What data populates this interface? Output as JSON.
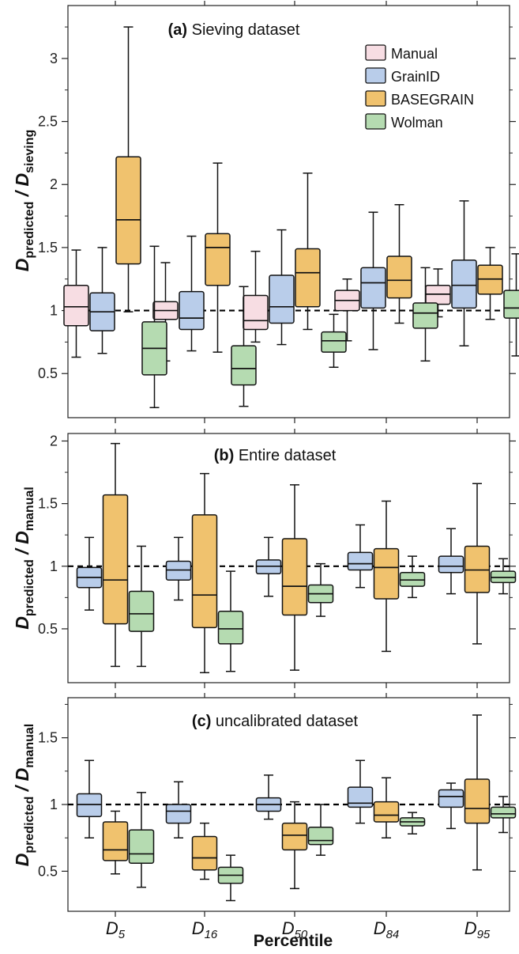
{
  "chart_data": {
    "type": "box",
    "xlabel": "Percentile",
    "categories": [
      {
        "main": "D",
        "sub": "5"
      },
      {
        "main": "D",
        "sub": "16"
      },
      {
        "main": "D",
        "sub": "50"
      },
      {
        "main": "D",
        "sub": "84"
      },
      {
        "main": "D",
        "sub": "95"
      }
    ],
    "legend": [
      {
        "name": "Manual",
        "color": "#f7dde3"
      },
      {
        "name": "GrainID",
        "color": "#b9cdea"
      },
      {
        "name": "BASEGRAIN",
        "color": "#f0c26e"
      },
      {
        "name": "Wolman",
        "color": "#b5dbb1"
      }
    ],
    "reference_line": 1,
    "panels": [
      {
        "label": "(a)",
        "title": "Sieving dataset",
        "ylabel": {
          "main": "D",
          "sub1": "predicted",
          "sep": " / ",
          "main2": "D",
          "sub2": "sieving"
        },
        "ylim": [
          0.15,
          3.42
        ],
        "yticks": [
          "0.5",
          "1",
          "1.5",
          "2",
          "2.5",
          "3"
        ],
        "series": [
          {
            "name": "Manual",
            "boxes": [
              {
                "min": 0.63,
                "q1": 0.88,
                "median": 1.03,
                "q3": 1.2,
                "max": 1.48
              },
              {
                "min": 0.6,
                "q1": 0.93,
                "median": 1.0,
                "q3": 1.07,
                "max": 1.38
              },
              {
                "min": 0.75,
                "q1": 0.85,
                "median": 0.92,
                "q3": 1.12,
                "max": 1.47
              },
              {
                "min": 0.76,
                "q1": 1.0,
                "median": 1.08,
                "q3": 1.16,
                "max": 1.25
              },
              {
                "min": 0.95,
                "q1": 1.05,
                "median": 1.13,
                "q3": 1.2,
                "max": 1.33
              }
            ]
          },
          {
            "name": "GrainID",
            "boxes": [
              {
                "min": 0.66,
                "q1": 0.84,
                "median": 0.99,
                "q3": 1.14,
                "max": 1.5
              },
              {
                "min": 0.68,
                "q1": 0.85,
                "median": 0.94,
                "q3": 1.15,
                "max": 1.59
              },
              {
                "min": 0.73,
                "q1": 0.9,
                "median": 1.03,
                "q3": 1.28,
                "max": 1.64
              },
              {
                "min": 0.69,
                "q1": 1.02,
                "median": 1.22,
                "q3": 1.34,
                "max": 1.78
              },
              {
                "min": 0.72,
                "q1": 1.02,
                "median": 1.2,
                "q3": 1.4,
                "max": 1.87
              }
            ]
          },
          {
            "name": "BASEGRAIN",
            "boxes": [
              {
                "min": 0.99,
                "q1": 1.37,
                "median": 1.72,
                "q3": 2.22,
                "max": 3.25
              },
              {
                "min": 0.67,
                "q1": 1.2,
                "median": 1.5,
                "q3": 1.61,
                "max": 2.17
              },
              {
                "min": 0.85,
                "q1": 1.03,
                "median": 1.3,
                "q3": 1.49,
                "max": 2.09
              },
              {
                "min": 0.9,
                "q1": 1.1,
                "median": 1.24,
                "q3": 1.43,
                "max": 1.84
              },
              {
                "min": 0.93,
                "q1": 1.13,
                "median": 1.25,
                "q3": 1.36,
                "max": 1.5
              }
            ]
          },
          {
            "name": "Wolman",
            "boxes": [
              {
                "min": 0.23,
                "q1": 0.49,
                "median": 0.7,
                "q3": 0.91,
                "max": 1.51
              },
              {
                "min": 0.24,
                "q1": 0.41,
                "median": 0.54,
                "q3": 0.72,
                "max": 1.19
              },
              {
                "min": 0.55,
                "q1": 0.67,
                "median": 0.76,
                "q3": 0.83,
                "max": 0.97
              },
              {
                "min": 0.6,
                "q1": 0.86,
                "median": 0.98,
                "q3": 1.06,
                "max": 1.34
              },
              {
                "min": 0.64,
                "q1": 0.94,
                "median": 1.02,
                "q3": 1.16,
                "max": 1.45
              }
            ]
          }
        ]
      },
      {
        "label": "(b)",
        "title": "Entire dataset",
        "ylabel": {
          "main": "D",
          "sub1": "predicted",
          "sep": " / ",
          "main2": "D",
          "sub2": "manual"
        },
        "ylim": [
          0.07,
          2.06
        ],
        "yticks": [
          "0.5",
          "1",
          "1.5",
          "2"
        ],
        "series": [
          {
            "name": "GrainID",
            "boxes": [
              {
                "min": 0.65,
                "q1": 0.83,
                "median": 0.91,
                "q3": 0.99,
                "max": 1.23
              },
              {
                "min": 0.73,
                "q1": 0.89,
                "median": 0.97,
                "q3": 1.04,
                "max": 1.23
              },
              {
                "min": 0.76,
                "q1": 0.94,
                "median": 1.0,
                "q3": 1.05,
                "max": 1.23
              },
              {
                "min": 0.83,
                "q1": 0.97,
                "median": 1.02,
                "q3": 1.11,
                "max": 1.33
              },
              {
                "min": 0.78,
                "q1": 0.95,
                "median": 1.0,
                "q3": 1.08,
                "max": 1.3
              }
            ]
          },
          {
            "name": "BASEGRAIN",
            "boxes": [
              {
                "min": 0.2,
                "q1": 0.54,
                "median": 0.89,
                "q3": 1.57,
                "max": 1.98
              },
              {
                "min": 0.15,
                "q1": 0.51,
                "median": 0.77,
                "q3": 1.41,
                "max": 1.74
              },
              {
                "min": 0.17,
                "q1": 0.61,
                "median": 0.84,
                "q3": 1.22,
                "max": 1.65
              },
              {
                "min": 0.32,
                "q1": 0.74,
                "median": 0.99,
                "q3": 1.14,
                "max": 1.52
              },
              {
                "min": 0.38,
                "q1": 0.79,
                "median": 0.97,
                "q3": 1.16,
                "max": 1.66
              }
            ]
          },
          {
            "name": "Wolman",
            "boxes": [
              {
                "min": 0.2,
                "q1": 0.48,
                "median": 0.62,
                "q3": 0.8,
                "max": 1.16
              },
              {
                "min": 0.16,
                "q1": 0.38,
                "median": 0.5,
                "q3": 0.64,
                "max": 0.96
              },
              {
                "min": 0.6,
                "q1": 0.71,
                "median": 0.78,
                "q3": 0.85,
                "max": 1.02
              },
              {
                "min": 0.75,
                "q1": 0.84,
                "median": 0.89,
                "q3": 0.95,
                "max": 1.08
              },
              {
                "min": 0.78,
                "q1": 0.87,
                "median": 0.91,
                "q3": 0.96,
                "max": 1.06
              }
            ]
          }
        ]
      },
      {
        "label": "(c)",
        "title": "uncalibrated dataset",
        "ylabel": {
          "main": "D",
          "sub1": "predicted",
          "sep": " / ",
          "main2": "D",
          "sub2": "manual"
        },
        "ylim": [
          0.2,
          1.8
        ],
        "yticks": [
          "0.5",
          "1",
          "1.5"
        ],
        "series": [
          {
            "name": "GrainID",
            "boxes": [
              {
                "min": 0.75,
                "q1": 0.91,
                "median": 1.0,
                "q3": 1.08,
                "max": 1.33
              },
              {
                "min": 0.75,
                "q1": 0.86,
                "median": 0.95,
                "q3": 1.0,
                "max": 1.17
              },
              {
                "min": 0.89,
                "q1": 0.95,
                "median": 1.0,
                "q3": 1.05,
                "max": 1.22
              },
              {
                "min": 0.86,
                "q1": 0.98,
                "median": 1.01,
                "q3": 1.13,
                "max": 1.33
              },
              {
                "min": 0.82,
                "q1": 0.98,
                "median": 1.06,
                "q3": 1.11,
                "max": 1.16
              }
            ]
          },
          {
            "name": "BASEGRAIN",
            "boxes": [
              {
                "min": 0.48,
                "q1": 0.58,
                "median": 0.66,
                "q3": 0.87,
                "max": 0.95
              },
              {
                "min": 0.44,
                "q1": 0.51,
                "median": 0.6,
                "q3": 0.76,
                "max": 0.86
              },
              {
                "min": 0.37,
                "q1": 0.66,
                "median": 0.77,
                "q3": 0.86,
                "max": 1.02
              },
              {
                "min": 0.75,
                "q1": 0.87,
                "median": 0.92,
                "q3": 1.02,
                "max": 1.2
              },
              {
                "min": 0.51,
                "q1": 0.86,
                "median": 0.97,
                "q3": 1.19,
                "max": 1.67
              }
            ]
          },
          {
            "name": "Wolman",
            "boxes": [
              {
                "min": 0.38,
                "q1": 0.56,
                "median": 0.63,
                "q3": 0.81,
                "max": 1.09
              },
              {
                "min": 0.28,
                "q1": 0.41,
                "median": 0.47,
                "q3": 0.53,
                "max": 0.62
              },
              {
                "min": 0.62,
                "q1": 0.7,
                "median": 0.73,
                "q3": 0.83,
                "max": 1.0
              },
              {
                "min": 0.78,
                "q1": 0.84,
                "median": 0.87,
                "q3": 0.9,
                "max": 0.94
              },
              {
                "min": 0.79,
                "q1": 0.9,
                "median": 0.93,
                "q3": 0.98,
                "max": 1.06
              }
            ]
          }
        ]
      }
    ]
  }
}
